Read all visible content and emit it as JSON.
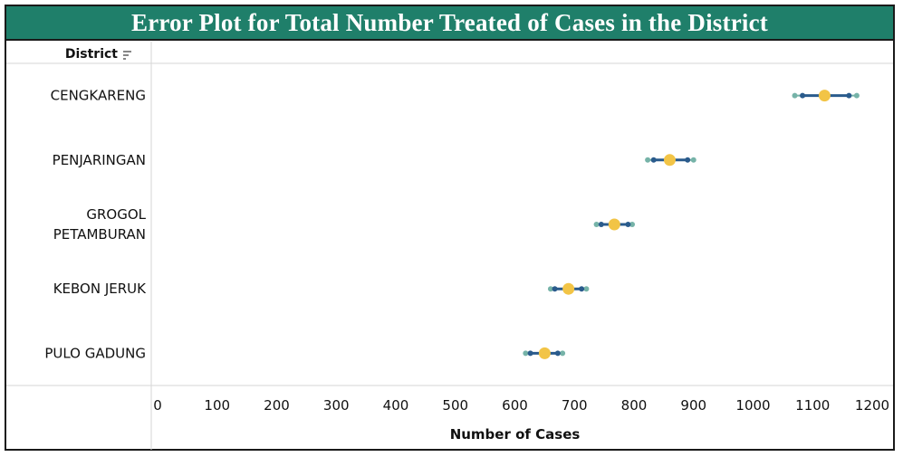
{
  "chart_data": {
    "type": "scatter",
    "title": "Error Plot for Total Number Treated of Cases in the District",
    "row_header": "District",
    "xlabel": "Number of Cases",
    "xlim": [
      0,
      1200
    ],
    "xticks": [
      0,
      100,
      200,
      300,
      400,
      500,
      600,
      700,
      800,
      900,
      1000,
      1100,
      1200
    ],
    "grid": false,
    "categories": [
      "CENGKARENG",
      "PENJARINGAN",
      "GROGOL PETAMBURAN",
      "KEBON JERUK",
      "PULO GADUNG"
    ],
    "category_lines": [
      [
        "CENGKARENG"
      ],
      [
        "PENJARINGAN"
      ],
      [
        "GROGOL",
        "PETAMBURAN"
      ],
      [
        "KEBON JERUK"
      ],
      [
        "PULO GADUNG"
      ]
    ],
    "series": [
      {
        "values": [
          1070,
          823,
          737,
          660,
          618
        ]
      },
      {
        "values": [
          1083,
          833,
          745,
          667,
          626
        ]
      },
      {
        "values": [
          1120,
          860,
          767,
          690,
          650
        ]
      },
      {
        "values": [
          1161,
          890,
          790,
          712,
          672
        ]
      },
      {
        "values": [
          1174,
          900,
          797,
          720,
          680
        ]
      }
    ],
    "colors": {
      "mean": "#f2c446",
      "inner_bound": "#2a5b8c",
      "outer_bound": "#76b3a8",
      "error_line": "#2a5b8c",
      "title_bar": "#1f7f6a"
    }
  }
}
